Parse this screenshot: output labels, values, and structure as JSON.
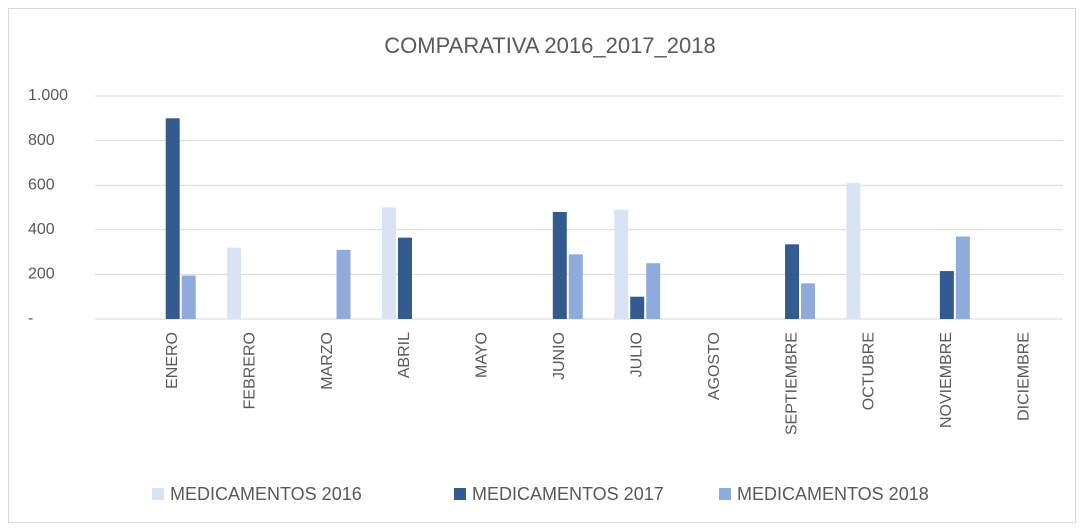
{
  "chart_data": {
    "type": "bar",
    "title": "COMPARATIVA 2016_2017_2018",
    "categories": [
      "ENERO",
      "FEBRERO",
      "MARZO",
      "ABRIL",
      "MAYO",
      "JUNIO",
      "JULIO",
      "AGOSTO",
      "SEPTIEMBRE",
      "OCTUBRE",
      "NOVIEMBRE",
      "DICIEMBRE"
    ],
    "series": [
      {
        "name": "MEDICAMENTOS 2016",
        "color": "#dae3f3",
        "values": [
          null,
          320,
          null,
          500,
          null,
          null,
          490,
          null,
          null,
          610,
          null,
          null
        ]
      },
      {
        "name": "MEDICAMENTOS 2017",
        "color": "#335b8f",
        "values": [
          900,
          null,
          null,
          365,
          null,
          480,
          100,
          null,
          335,
          null,
          215,
          null
        ]
      },
      {
        "name": "MEDICAMENTOS 2018",
        "color": "#8faadc",
        "values": [
          195,
          null,
          310,
          null,
          null,
          290,
          250,
          null,
          160,
          null,
          370,
          null
        ]
      }
    ],
    "ylim": [
      0,
      1000
    ],
    "yticks": [
      {
        "value": 0,
        "label": "-"
      },
      200,
      400,
      600,
      800,
      {
        "value": 1000,
        "label": "1.000"
      }
    ],
    "grid": true,
    "legend": "bottom"
  }
}
